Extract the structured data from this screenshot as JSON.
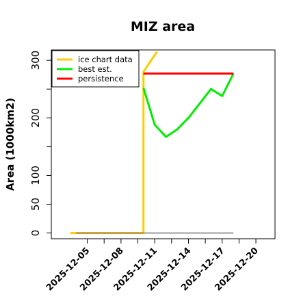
{
  "chart_data": {
    "type": "line",
    "title": "MIZ area",
    "xlabel": "",
    "ylabel": "Area (1000km2)",
    "x_tick_labels": [
      "2025-12-05",
      "2025-12-08",
      "2025-12-11",
      "2025-12-14",
      "2025-12-17",
      "2025-12-20"
    ],
    "x_tick_positions": [
      5,
      8,
      11,
      14,
      17,
      20
    ],
    "x_minor_ticks": [
      6.5,
      9.5,
      12.5,
      15.5,
      18.5
    ],
    "y_tick_labels": [
      "0",
      "50",
      "100",
      "200",
      "300"
    ],
    "y_tick_values": [
      0,
      50,
      100,
      200,
      300
    ],
    "y_minor_ticks": [
      150,
      250
    ],
    "xlim": [
      1.8,
      21.7
    ],
    "ylim": [
      -10,
      318
    ],
    "legend_position": "top-left",
    "grid": false,
    "series": [
      {
        "name": "ice chart data",
        "color": "#ffcc00",
        "x": [
          3.5,
          10.0,
          10.0,
          10.0,
          11.2
        ],
        "y": [
          0,
          0,
          270,
          280,
          315
        ]
      },
      {
        "name": "best est.",
        "color": "#00ee00",
        "x": [
          10,
          11,
          12,
          13,
          14,
          15,
          16,
          17,
          18
        ],
        "y": [
          252,
          188,
          167,
          180,
          200,
          225,
          250,
          238,
          277
        ]
      },
      {
        "name": "persistence",
        "color": "#ff0000",
        "x": [
          10,
          18
        ],
        "y": [
          277,
          277
        ]
      },
      {
        "name": "",
        "color": "#777777",
        "x": [
          4,
          18
        ],
        "y": [
          0,
          0
        ]
      }
    ]
  }
}
